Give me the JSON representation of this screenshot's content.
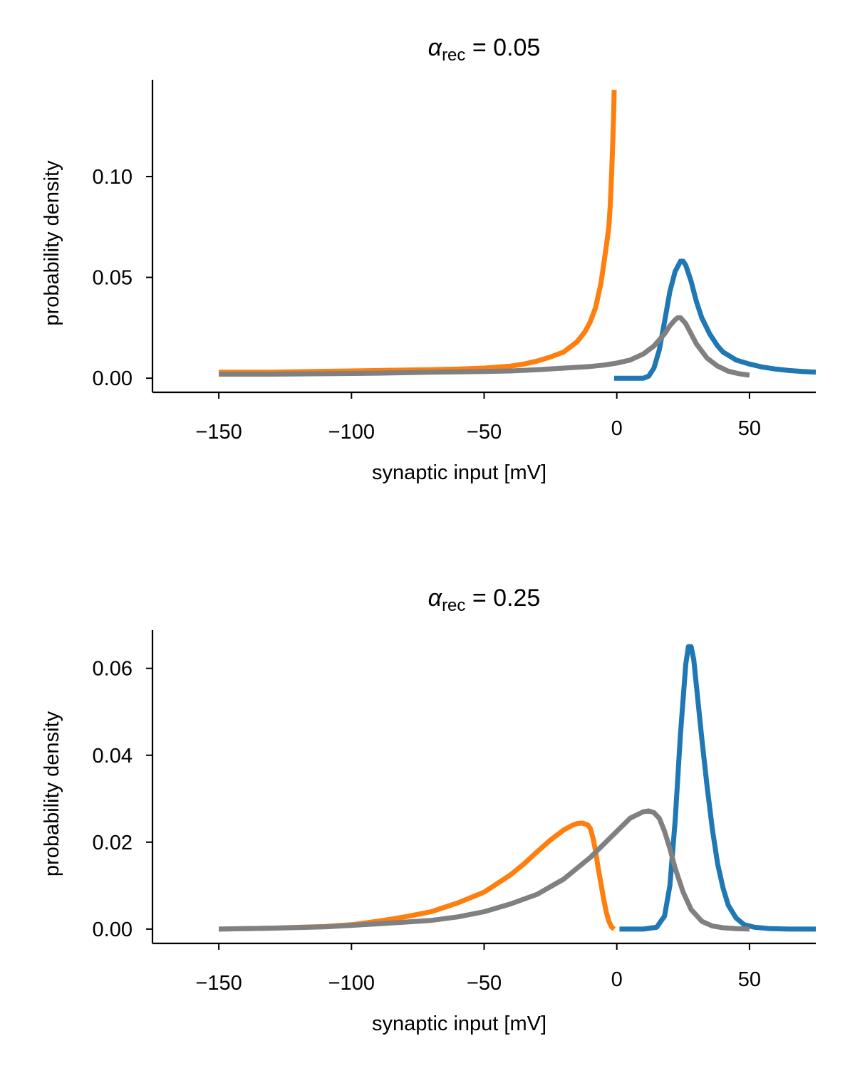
{
  "chart_data": [
    {
      "type": "line",
      "title": {
        "symbol": "α",
        "subscript": "rec",
        "suffix": " = 0.05"
      },
      "xlabel": "synaptic input [mV]",
      "ylabel": "probability density",
      "xlim": [
        -175,
        75
      ],
      "ylim": [
        -0.007,
        0.148
      ],
      "xticks": [
        -150,
        -100,
        -50,
        0,
        50
      ],
      "xtick_labels": [
        "−150",
        "−100",
        "−50",
        "0",
        "50"
      ],
      "yticks": [
        0.0,
        0.05,
        0.1
      ],
      "ytick_labels": [
        "0.00",
        "0.05",
        "0.10"
      ],
      "grid": false,
      "series": [
        {
          "color": "#ff7f0e",
          "x": [
            -150,
            -140,
            -130,
            -120,
            -110,
            -100,
            -90,
            -80,
            -70,
            -60,
            -50,
            -45,
            -40,
            -35,
            -30,
            -25,
            -20,
            -15,
            -12,
            -10,
            -8,
            -6,
            -5,
            -4,
            -3,
            -2.5,
            -2,
            -1.5,
            -1.2,
            -1
          ],
          "y": [
            0.003,
            0.003,
            0.003,
            0.0032,
            0.0034,
            0.0036,
            0.0038,
            0.004,
            0.0042,
            0.0045,
            0.005,
            0.0055,
            0.006,
            0.007,
            0.0085,
            0.0105,
            0.013,
            0.018,
            0.023,
            0.028,
            0.035,
            0.047,
            0.056,
            0.065,
            0.075,
            0.085,
            0.1,
            0.118,
            0.13,
            0.143
          ]
        },
        {
          "color": "#1f77b4",
          "x": [
            -1,
            5,
            10,
            12,
            14,
            16,
            18,
            20,
            22,
            24,
            25,
            26,
            28,
            30,
            32,
            35,
            38,
            40,
            45,
            50,
            55,
            60,
            65,
            70,
            75
          ],
          "y": [
            0.0,
            0.0,
            0.0,
            0.001,
            0.005,
            0.014,
            0.028,
            0.043,
            0.053,
            0.058,
            0.058,
            0.056,
            0.048,
            0.038,
            0.03,
            0.022,
            0.016,
            0.013,
            0.009,
            0.007,
            0.0055,
            0.0045,
            0.0038,
            0.0033,
            0.003
          ]
        },
        {
          "color": "#808080",
          "x": [
            -150,
            -130,
            -110,
            -90,
            -70,
            -50,
            -40,
            -30,
            -20,
            -10,
            -5,
            0,
            5,
            10,
            14,
            18,
            20,
            22,
            23,
            24,
            26,
            28,
            30,
            34,
            38,
            42,
            46,
            50
          ],
          "y": [
            0.002,
            0.002,
            0.0022,
            0.0025,
            0.003,
            0.0033,
            0.0036,
            0.0042,
            0.005,
            0.0058,
            0.0065,
            0.0075,
            0.009,
            0.012,
            0.016,
            0.022,
            0.026,
            0.029,
            0.03,
            0.03,
            0.027,
            0.022,
            0.017,
            0.01,
            0.006,
            0.0035,
            0.0022,
            0.0015
          ]
        }
      ]
    },
    {
      "type": "line",
      "title": {
        "symbol": "α",
        "subscript": "rec",
        "suffix": " = 0.25"
      },
      "xlabel": "synaptic input [mV]",
      "ylabel": "probability density",
      "xlim": [
        -175,
        75
      ],
      "ylim": [
        -0.0033,
        0.0688
      ],
      "xticks": [
        -150,
        -100,
        -50,
        0,
        50
      ],
      "xtick_labels": [
        "−150",
        "−100",
        "−50",
        "0",
        "50"
      ],
      "yticks": [
        0.0,
        0.02,
        0.04,
        0.06
      ],
      "ytick_labels": [
        "0.00",
        "0.02",
        "0.04",
        "0.06"
      ],
      "grid": false,
      "series": [
        {
          "color": "#ff7f0e",
          "x": [
            -150,
            -130,
            -110,
            -100,
            -90,
            -80,
            -70,
            -60,
            -50,
            -45,
            -40,
            -35,
            -30,
            -25,
            -20,
            -17,
            -15,
            -13,
            -11,
            -10,
            -9,
            -8,
            -7,
            -6,
            -5,
            -4,
            -3,
            -2,
            -1
          ],
          "y": [
            0.0,
            0.0002,
            0.0006,
            0.001,
            0.0018,
            0.0028,
            0.004,
            0.006,
            0.0085,
            0.0105,
            0.0125,
            0.015,
            0.0178,
            0.0205,
            0.0228,
            0.0238,
            0.0243,
            0.0244,
            0.024,
            0.0232,
            0.021,
            0.018,
            0.014,
            0.0105,
            0.007,
            0.004,
            0.0018,
            0.0005,
            0.0
          ]
        },
        {
          "color": "#1f77b4",
          "x": [
            1,
            10,
            15,
            18,
            20,
            22,
            24,
            26,
            27,
            28,
            29,
            30,
            32,
            34,
            36,
            38,
            40,
            42,
            45,
            48,
            52,
            58,
            65,
            75
          ],
          "y": [
            0.0,
            0.0,
            0.0004,
            0.003,
            0.01,
            0.025,
            0.045,
            0.061,
            0.065,
            0.065,
            0.062,
            0.056,
            0.044,
            0.033,
            0.023,
            0.015,
            0.0095,
            0.0055,
            0.0025,
            0.001,
            0.0004,
            0.0001,
            0.0,
            0.0
          ]
        },
        {
          "color": "#808080",
          "x": [
            -150,
            -130,
            -110,
            -90,
            -70,
            -60,
            -50,
            -40,
            -30,
            -20,
            -10,
            -5,
            0,
            5,
            10,
            12,
            14,
            16,
            18,
            20,
            22,
            25,
            28,
            32,
            36,
            40,
            45,
            50
          ],
          "y": [
            0.0,
            0.0002,
            0.0005,
            0.0012,
            0.002,
            0.0028,
            0.004,
            0.0058,
            0.008,
            0.0115,
            0.0165,
            0.0195,
            0.0225,
            0.0255,
            0.027,
            0.0272,
            0.0268,
            0.0255,
            0.0225,
            0.0185,
            0.014,
            0.0085,
            0.0045,
            0.0018,
            0.0007,
            0.0003,
            0.0001,
            0.0
          ]
        }
      ]
    }
  ]
}
